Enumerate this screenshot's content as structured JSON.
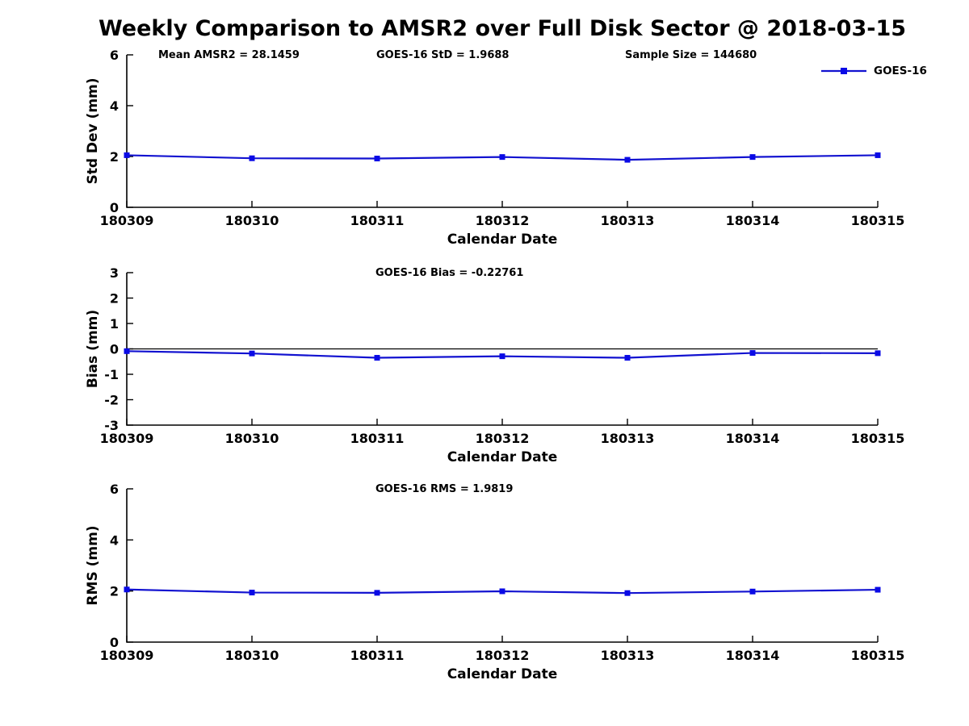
{
  "title": "Weekly Comparison to AMSR2 over Full Disk Sector @ 2018-03-15",
  "legend": {
    "label": "GOES-16",
    "position": "upper-right"
  },
  "colors": {
    "line": "#1212d0",
    "marker": "#0a0ae6",
    "axis": "#000000",
    "text": "#000000",
    "background": "#ffffff"
  },
  "chart_data": [
    {
      "type": "line",
      "panel": "std-dev",
      "categories": [
        "180309",
        "180310",
        "180311",
        "180312",
        "180313",
        "180314",
        "180315"
      ],
      "series": [
        {
          "name": "GOES-16",
          "marker": "square",
          "values": [
            2.05,
            1.93,
            1.92,
            1.98,
            1.87,
            1.98,
            2.05
          ]
        }
      ],
      "xlabel": "Calendar Date",
      "ylabel": "Std Dev (mm)",
      "ylim": [
        0,
        6
      ],
      "yticks": [
        0,
        2,
        4,
        6
      ],
      "grid": false,
      "zero_line": false,
      "annotations": [
        {
          "text": "Mean AMSR2 = 28.1459",
          "x": 196
        },
        {
          "text": "GOES-16 StD = 1.9688",
          "x": 466
        },
        {
          "text": "Sample Size = 144680",
          "x": 774
        }
      ]
    },
    {
      "type": "line",
      "panel": "bias",
      "categories": [
        "180309",
        "180310",
        "180311",
        "180312",
        "180313",
        "180314",
        "180315"
      ],
      "series": [
        {
          "name": "GOES-16",
          "marker": "square",
          "values": [
            -0.09,
            -0.18,
            -0.35,
            -0.29,
            -0.35,
            -0.16,
            -0.17
          ]
        }
      ],
      "xlabel": "Calendar Date",
      "ylabel": "Bias (mm)",
      "ylim": [
        -3,
        3
      ],
      "yticks": [
        -3,
        -2,
        -1,
        0,
        1,
        2,
        3
      ],
      "grid": false,
      "zero_line": true,
      "annotations": [
        {
          "text": "GOES-16 Bias  = -0.22761",
          "x": 465
        }
      ]
    },
    {
      "type": "line",
      "panel": "rms",
      "categories": [
        "180309",
        "180310",
        "180311",
        "180312",
        "180313",
        "180314",
        "180315"
      ],
      "series": [
        {
          "name": "GOES-16",
          "marker": "square",
          "values": [
            2.06,
            1.94,
            1.93,
            1.99,
            1.92,
            1.98,
            2.05
          ]
        }
      ],
      "xlabel": "Calendar Date",
      "ylabel": "RMS (mm)",
      "ylim": [
        0,
        6
      ],
      "yticks": [
        0,
        2,
        4,
        6
      ],
      "grid": false,
      "zero_line": false,
      "annotations": [
        {
          "text": "GOES-16 RMS = 1.9819",
          "x": 465
        }
      ]
    }
  ]
}
